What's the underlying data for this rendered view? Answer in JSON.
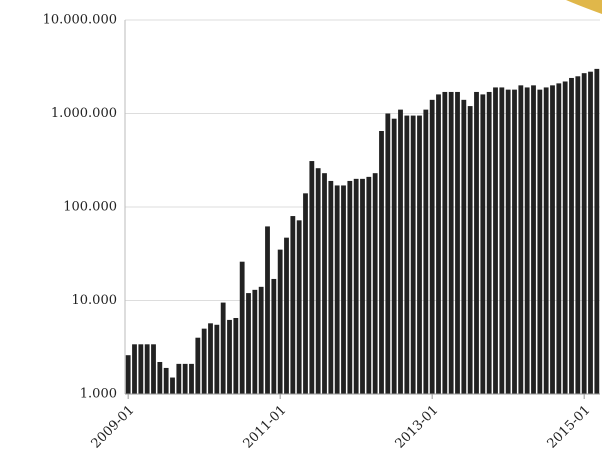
{
  "chart_data": {
    "type": "bar",
    "log_scale": true,
    "grid": true,
    "color": "#222222",
    "categories": [
      "2009-01",
      null,
      null,
      null,
      null,
      null,
      null,
      null,
      null,
      null,
      null,
      null,
      null,
      null,
      null,
      null,
      null,
      null,
      null,
      null,
      null,
      null,
      null,
      null,
      "2011-01",
      null,
      null,
      null,
      null,
      null,
      null,
      null,
      null,
      null,
      null,
      null,
      null,
      null,
      null,
      null,
      null,
      null,
      null,
      null,
      null,
      null,
      null,
      null,
      "2013-01",
      null,
      null,
      null,
      null,
      null,
      null,
      null,
      null,
      null,
      null,
      null,
      null,
      null,
      null,
      null,
      null,
      null,
      null,
      null,
      null,
      null,
      null,
      null,
      "2015-01",
      null,
      null
    ],
    "values": [
      2600,
      3400,
      3400,
      3400,
      3400,
      2200,
      1900,
      1500,
      2100,
      2100,
      2100,
      4000,
      5000,
      5700,
      5500,
      9500,
      6200,
      6500,
      26000,
      12000,
      13000,
      14000,
      62000,
      17000,
      35000,
      47000,
      80000,
      72000,
      140000,
      310000,
      260000,
      230000,
      190000,
      170000,
      170000,
      190000,
      200000,
      200000,
      210000,
      230000,
      650000,
      1000000,
      880000,
      1100000,
      950000,
      950000,
      950000,
      1100000,
      1400000,
      1600000,
      1700000,
      1700000,
      1700000,
      1400000,
      1200000,
      1700000,
      1600000,
      1700000,
      1900000,
      1900000,
      1800000,
      1800000,
      2000000,
      1900000,
      2000000,
      1800000,
      1900000,
      2000000,
      2100000,
      2200000,
      2400000,
      2500000,
      2700000,
      2800000,
      3000000
    ],
    "ylim": [
      1000,
      10000000
    ],
    "yticks": [
      {
        "value": 1000,
        "label": "1.000"
      },
      {
        "value": 10000,
        "label": "10.000"
      },
      {
        "value": 100000,
        "label": "100.000"
      },
      {
        "value": 1000000,
        "label": "1.000.000"
      },
      {
        "value": 10000000,
        "label": "10.000.000"
      }
    ]
  }
}
